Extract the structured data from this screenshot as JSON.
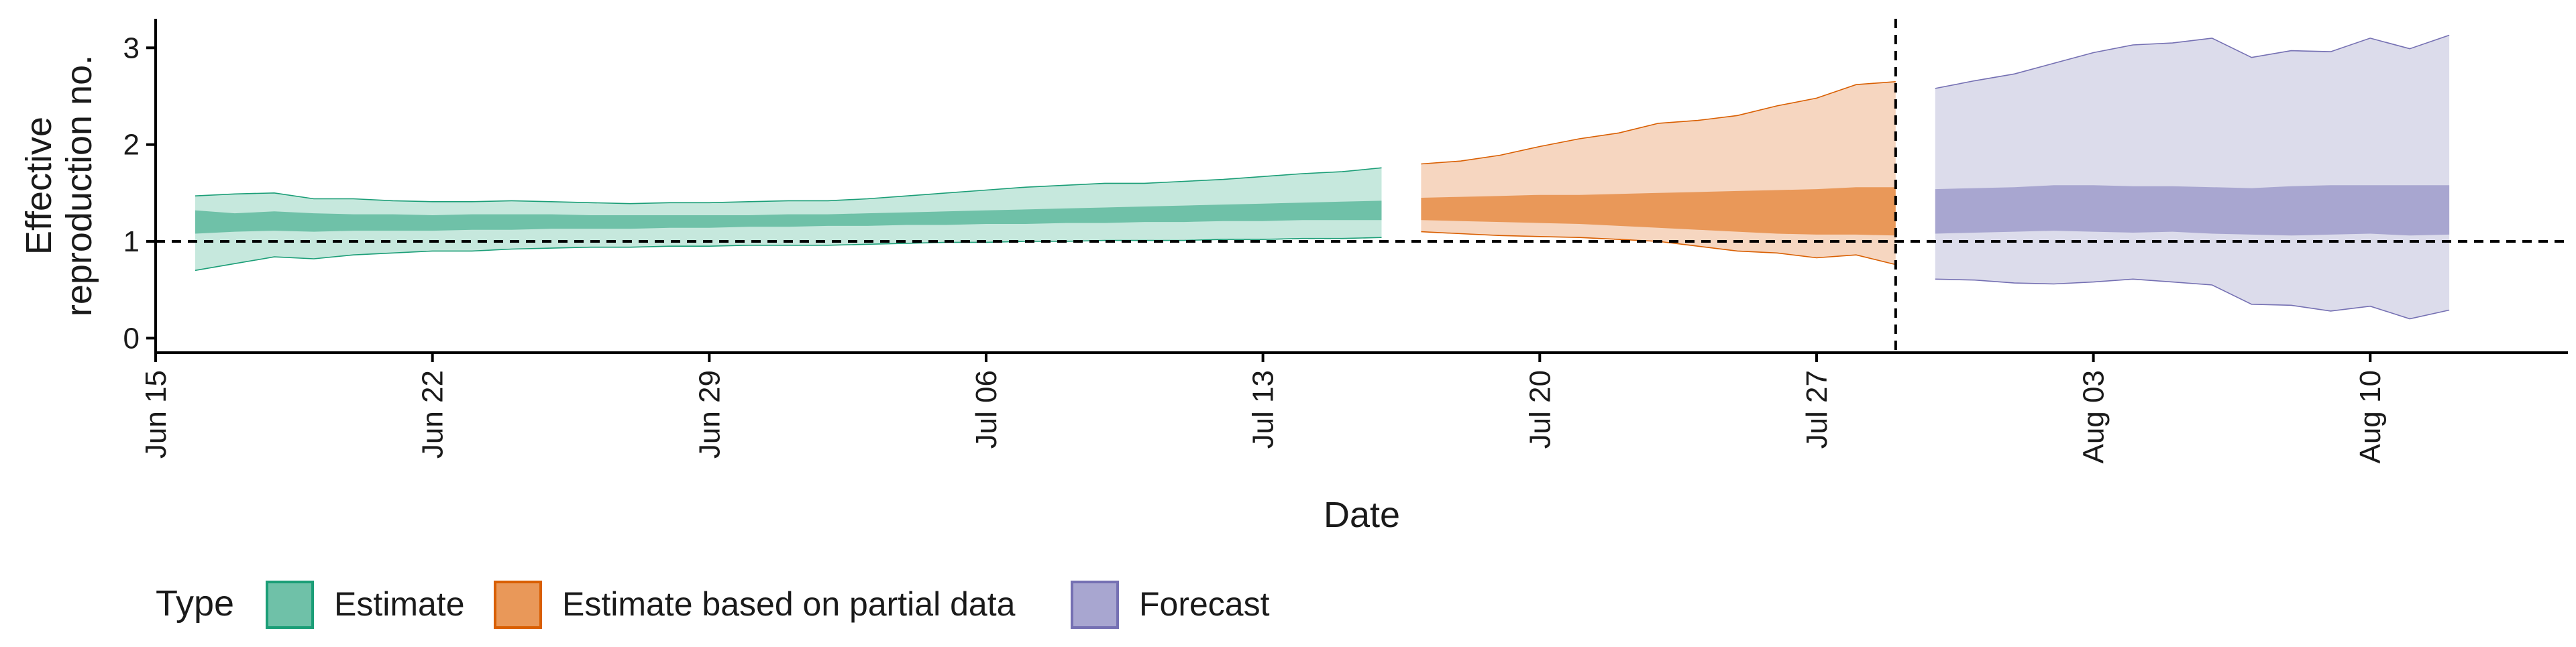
{
  "chart_data": {
    "type": "area",
    "xlabel": "Date",
    "ylabel_lines": [
      "Effective",
      "reproduction no."
    ],
    "ylim": [
      -0.15,
      3.3
    ],
    "xlim": [
      "2020-06-15",
      "2020-08-15"
    ],
    "x_ticks": [
      {
        "date": "2020-06-15",
        "label": "Jun 15"
      },
      {
        "date": "2020-06-22",
        "label": "Jun 22"
      },
      {
        "date": "2020-06-29",
        "label": "Jun 29"
      },
      {
        "date": "2020-07-06",
        "label": "Jul 06"
      },
      {
        "date": "2020-07-13",
        "label": "Jul 13"
      },
      {
        "date": "2020-07-20",
        "label": "Jul 20"
      },
      {
        "date": "2020-07-27",
        "label": "Jul 27"
      },
      {
        "date": "2020-08-03",
        "label": "Aug 03"
      },
      {
        "date": "2020-08-10",
        "label": "Aug 10"
      }
    ],
    "y_ticks": [
      0,
      1,
      2,
      3
    ],
    "reference_line_y": 1,
    "vline_date": "2020-07-29",
    "grid": false,
    "legend": {
      "title": "Type",
      "position": "bottom-left",
      "items": [
        "Estimate",
        "Estimate based on partial data",
        "Forecast"
      ]
    },
    "colors": {
      "Estimate": {
        "outer": "#c6e8dd",
        "inner": "#6fc1a8",
        "line": "#1b9e77"
      },
      "Estimate based on partial data": {
        "outer": "#f6d6c0",
        "inner": "#e99859",
        "line": "#d95f02"
      },
      "Forecast": {
        "outer": "#dcdceb",
        "inner": "#a8a6d0",
        "line": "#7570b3"
      }
    },
    "series": [
      {
        "name": "Estimate",
        "dates": [
          "2020-06-16",
          "2020-06-17",
          "2020-06-18",
          "2020-06-19",
          "2020-06-20",
          "2020-06-21",
          "2020-06-22",
          "2020-06-23",
          "2020-06-24",
          "2020-06-25",
          "2020-06-26",
          "2020-06-27",
          "2020-06-28",
          "2020-06-29",
          "2020-06-30",
          "2020-07-01",
          "2020-07-02",
          "2020-07-03",
          "2020-07-04",
          "2020-07-05",
          "2020-07-06",
          "2020-07-07",
          "2020-07-08",
          "2020-07-09",
          "2020-07-10",
          "2020-07-11",
          "2020-07-12",
          "2020-07-13",
          "2020-07-14",
          "2020-07-15",
          "2020-07-16"
        ],
        "lower_90": [
          0.7,
          0.77,
          0.84,
          0.82,
          0.86,
          0.88,
          0.9,
          0.9,
          0.92,
          0.93,
          0.94,
          0.94,
          0.95,
          0.95,
          0.96,
          0.96,
          0.96,
          0.97,
          0.98,
          0.99,
          0.99,
          1.0,
          1.0,
          1.01,
          1.01,
          1.01,
          1.02,
          1.02,
          1.03,
          1.03,
          1.04
        ],
        "upper_90": [
          1.47,
          1.49,
          1.5,
          1.44,
          1.44,
          1.42,
          1.41,
          1.41,
          1.42,
          1.41,
          1.4,
          1.39,
          1.4,
          1.4,
          1.41,
          1.42,
          1.42,
          1.44,
          1.47,
          1.5,
          1.53,
          1.56,
          1.58,
          1.6,
          1.6,
          1.62,
          1.64,
          1.67,
          1.7,
          1.72,
          1.76
        ],
        "lower_50": [
          1.08,
          1.1,
          1.11,
          1.1,
          1.11,
          1.11,
          1.11,
          1.12,
          1.12,
          1.13,
          1.13,
          1.13,
          1.14,
          1.14,
          1.15,
          1.15,
          1.16,
          1.16,
          1.17,
          1.17,
          1.18,
          1.18,
          1.19,
          1.19,
          1.2,
          1.2,
          1.21,
          1.21,
          1.22,
          1.22,
          1.22
        ],
        "upper_50": [
          1.32,
          1.29,
          1.31,
          1.29,
          1.28,
          1.28,
          1.27,
          1.28,
          1.28,
          1.28,
          1.27,
          1.27,
          1.27,
          1.27,
          1.27,
          1.28,
          1.28,
          1.29,
          1.3,
          1.31,
          1.32,
          1.33,
          1.34,
          1.35,
          1.36,
          1.37,
          1.38,
          1.39,
          1.4,
          1.41,
          1.42
        ]
      },
      {
        "name": "Estimate based on partial data",
        "dates": [
          "2020-07-17",
          "2020-07-18",
          "2020-07-19",
          "2020-07-20",
          "2020-07-21",
          "2020-07-22",
          "2020-07-23",
          "2020-07-24",
          "2020-07-25",
          "2020-07-26",
          "2020-07-27",
          "2020-07-28",
          "2020-07-29"
        ],
        "lower_90": [
          1.1,
          1.08,
          1.06,
          1.05,
          1.04,
          1.02,
          1.0,
          0.95,
          0.9,
          0.88,
          0.83,
          0.86,
          0.76
        ],
        "upper_90": [
          1.8,
          1.83,
          1.89,
          1.98,
          2.06,
          2.12,
          2.22,
          2.25,
          2.3,
          2.4,
          2.48,
          2.62,
          2.65
        ],
        "lower_50": [
          1.22,
          1.21,
          1.2,
          1.19,
          1.18,
          1.16,
          1.14,
          1.12,
          1.1,
          1.08,
          1.07,
          1.07,
          1.06
        ],
        "upper_50": [
          1.45,
          1.46,
          1.47,
          1.48,
          1.48,
          1.49,
          1.5,
          1.51,
          1.52,
          1.53,
          1.54,
          1.56,
          1.56
        ]
      },
      {
        "name": "Forecast",
        "dates": [
          "2020-07-30",
          "2020-07-31",
          "2020-08-01",
          "2020-08-02",
          "2020-08-03",
          "2020-08-04",
          "2020-08-05",
          "2020-08-06",
          "2020-08-07",
          "2020-08-08",
          "2020-08-09",
          "2020-08-10",
          "2020-08-11",
          "2020-08-12"
        ],
        "lower_90": [
          0.61,
          0.6,
          0.57,
          0.56,
          0.58,
          0.61,
          0.58,
          0.55,
          0.35,
          0.34,
          0.28,
          0.33,
          0.2,
          0.29
        ],
        "upper_90": [
          2.58,
          2.66,
          2.73,
          2.84,
          2.95,
          3.03,
          3.05,
          3.1,
          2.9,
          2.97,
          2.96,
          3.1,
          2.99,
          3.13
        ],
        "lower_50": [
          1.08,
          1.09,
          1.1,
          1.11,
          1.1,
          1.09,
          1.1,
          1.08,
          1.07,
          1.06,
          1.07,
          1.08,
          1.06,
          1.07
        ],
        "upper_50": [
          1.54,
          1.55,
          1.56,
          1.58,
          1.58,
          1.57,
          1.57,
          1.56,
          1.55,
          1.57,
          1.58,
          1.58,
          1.58,
          1.58
        ]
      }
    ]
  }
}
